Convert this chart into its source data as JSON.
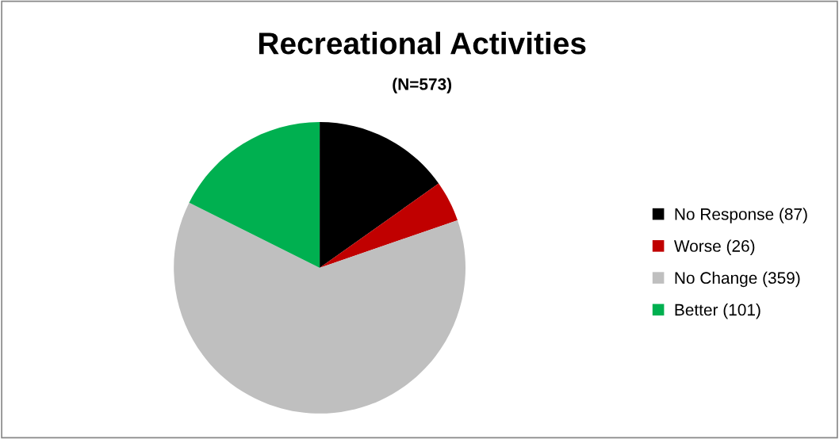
{
  "chart_data": {
    "type": "pie",
    "title": "Recreational Activities",
    "subtitle": "(N=573)",
    "categories": [
      "No Response (87)",
      "Worse (26)",
      "No Change (359)",
      "Better (101)"
    ],
    "values": [
      87,
      26,
      359,
      101
    ],
    "colors": [
      "#000000",
      "#c00000",
      "#bfbfbf",
      "#00b050"
    ],
    "legend": "right"
  }
}
